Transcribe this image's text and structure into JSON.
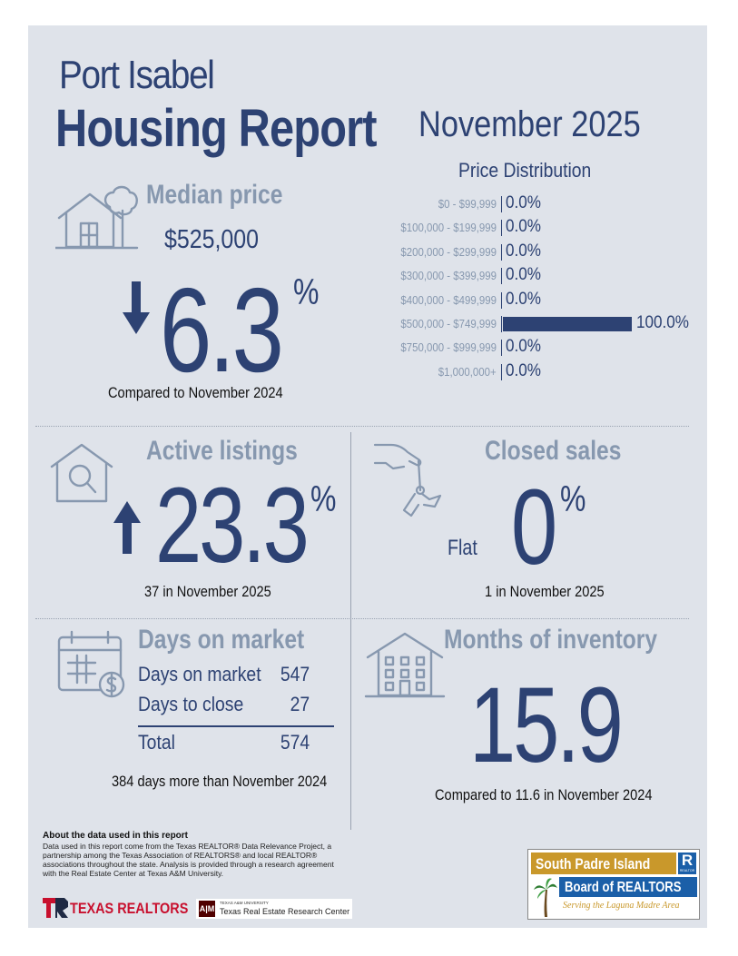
{
  "header": {
    "city": "Port Isabel",
    "title": "Housing Report",
    "month": "November 2025"
  },
  "median_price": {
    "title": "Median price",
    "value": "$525,000",
    "change": "6.3",
    "percent_sign": "%",
    "direction": "down",
    "caption": "Compared to November 2024"
  },
  "price_distribution": {
    "title": "Price Distribution",
    "rows": [
      {
        "label": "$0 - $99,999",
        "value": "0.0%",
        "share": 0.0
      },
      {
        "label": "$100,000 - $199,999",
        "value": "0.0%",
        "share": 0.0
      },
      {
        "label": "$200,000 - $299,999",
        "value": "0.0%",
        "share": 0.0
      },
      {
        "label": "$300,000 - $399,999",
        "value": "0.0%",
        "share": 0.0
      },
      {
        "label": "$400,000 - $499,999",
        "value": "0.0%",
        "share": 0.0
      },
      {
        "label": "$500,000 - $749,999",
        "value": "100.0%",
        "share": 1.0
      },
      {
        "label": "$750,000 - $999,999",
        "value": "0.0%",
        "share": 0.0
      },
      {
        "label": "$1,000,000+",
        "value": "0.0%",
        "share": 0.0
      }
    ]
  },
  "active_listings": {
    "title": "Active listings",
    "change": "23.3",
    "percent_sign": "%",
    "direction": "up",
    "caption": "37 in November 2025"
  },
  "closed_sales": {
    "title": "Closed sales",
    "flat_label": "Flat",
    "change": "0",
    "percent_sign": "%",
    "caption": "1 in November 2025"
  },
  "days_on_market": {
    "title": "Days on market",
    "rows": [
      {
        "label": "Days on market",
        "value": "547"
      },
      {
        "label": "Days to close",
        "value": "27"
      }
    ],
    "total_label": "Total",
    "total_value": "574",
    "caption": "384 days more than November 2024"
  },
  "months_inventory": {
    "title": "Months of inventory",
    "value": "15.9",
    "caption": "Compared to 11.6 in November 2024"
  },
  "about": {
    "heading": "About the data used in this report",
    "text": "Data used in this report come from the Texas REALTOR® Data Relevance Project, a partnership among the Texas Association of REALTORS® and local REALTOR® associations throughout the state. Analysis is provided through a research agreement with the Real Estate Center at Texas A&M University."
  },
  "logos": {
    "texas_realtors": "TEXAS REALTORS",
    "tamu_small": "TEXAS A&M UNIVERSITY",
    "tamu_center": "Texas Real Estate Research Center",
    "spi_line1": "South Padre Island",
    "spi_line2": "Board of REALTORS",
    "spi_tagline": "Serving the Laguna Madre Area",
    "spi_r": "R",
    "spi_r_small": "REALTOR"
  },
  "colors": {
    "navy": "#2d4273",
    "gray_blue": "#8798af",
    "panel": "#dfe3ea",
    "gold": "#c9982b",
    "spi_blue": "#1b5fa8"
  }
}
